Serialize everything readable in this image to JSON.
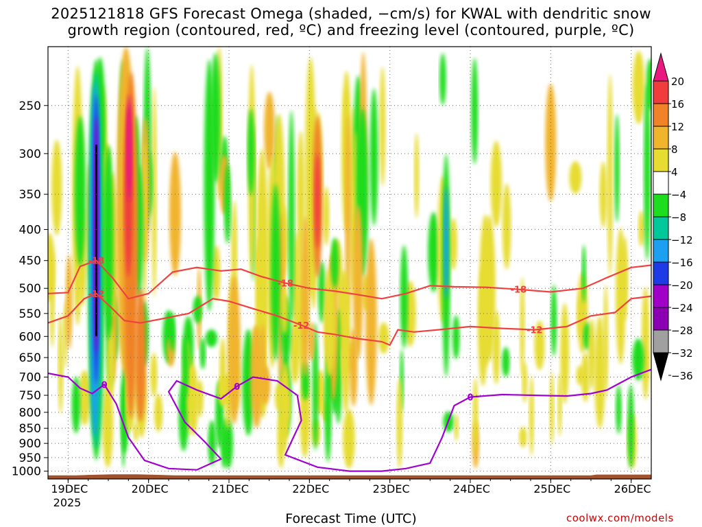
{
  "title_line1": "2025121818 GFS Forecast Omega (shaded, −cm/s) for KWAL with dendritic snow",
  "title_line2": "growth region (contoured, red, ºC) and freezing level (contoured, purple, ºC)",
  "xlabel": "Forecast Time (UTC)",
  "credit": "coolwx.com/models",
  "chart_data": {
    "type": "heatmap",
    "x_ticks": [
      "19DEC",
      "20DEC",
      "21DEC",
      "22DEC",
      "23DEC",
      "24DEC",
      "25DEC",
      "26DEC"
    ],
    "x_sublabel": "2025",
    "x_range_days": [
      18.75,
      26.25
    ],
    "y_ticks": [
      250,
      300,
      350,
      400,
      450,
      500,
      550,
      600,
      650,
      700,
      750,
      800,
      850,
      900,
      950,
      1000
    ],
    "y_range_hpa": [
      200,
      1030
    ],
    "colorbar": {
      "labels": [
        "20",
        "16",
        "12",
        "8",
        "4",
        "−4",
        "−8",
        "−12",
        "−16",
        "−20",
        "−24",
        "−28",
        "−32",
        "−36"
      ],
      "colors": [
        "#e8197f",
        "#f03c3c",
        "#f08228",
        "#f0b42d",
        "#e6dc32",
        "#ffffff",
        "#1edc1e",
        "#00c89b",
        "#1ea0f0",
        "#1e3ce6",
        "#a000c8",
        "#8c00b4",
        "#a0a0a0",
        "#000000"
      ]
    },
    "omega_features": [
      {
        "name": "ascent-core",
        "day": 19.35,
        "top": 210,
        "bottom": 970,
        "value": -24
      },
      {
        "name": "ascent-mid",
        "day": 23.7,
        "top": 300,
        "bottom": 700,
        "value": -12
      },
      {
        "name": "sinking-max",
        "day": 19.75,
        "top": 180,
        "bottom": 620,
        "value": 20
      },
      {
        "name": "sinking-2",
        "day": 22.1,
        "top": 280,
        "bottom": 460,
        "value": 16
      }
    ],
    "contours": [
      {
        "label": "-18",
        "color": "#f04040",
        "points": [
          [
            18.75,
            510
          ],
          [
            19.0,
            508
          ],
          [
            19.15,
            460
          ],
          [
            19.35,
            450
          ],
          [
            19.55,
            480
          ],
          [
            19.75,
            520
          ],
          [
            20.0,
            510
          ],
          [
            20.3,
            470
          ],
          [
            20.6,
            462
          ],
          [
            20.9,
            468
          ],
          [
            21.15,
            465
          ],
          [
            21.4,
            478
          ],
          [
            21.7,
            490
          ],
          [
            22.0,
            500
          ],
          [
            22.3,
            505
          ],
          [
            22.6,
            512
          ],
          [
            22.9,
            520
          ],
          [
            23.2,
            510
          ],
          [
            23.5,
            495
          ],
          [
            23.8,
            497
          ],
          [
            24.2,
            498
          ],
          [
            24.6,
            502
          ],
          [
            25.0,
            507
          ],
          [
            25.4,
            500
          ],
          [
            25.7,
            480
          ],
          [
            26.0,
            462
          ],
          [
            26.25,
            458
          ]
        ]
      },
      {
        "label": "-12",
        "color": "#f04040",
        "points": [
          [
            18.75,
            570
          ],
          [
            19.0,
            555
          ],
          [
            19.2,
            520
          ],
          [
            19.35,
            510
          ],
          [
            19.55,
            540
          ],
          [
            19.7,
            565
          ],
          [
            19.9,
            570
          ],
          [
            20.2,
            560
          ],
          [
            20.5,
            550
          ],
          [
            20.8,
            520
          ],
          [
            21.0,
            525
          ],
          [
            21.3,
            540
          ],
          [
            21.6,
            555
          ],
          [
            21.9,
            575
          ],
          [
            22.1,
            590
          ],
          [
            22.3,
            595
          ],
          [
            22.6,
            605
          ],
          [
            22.9,
            612
          ],
          [
            23.0,
            620
          ],
          [
            23.1,
            585
          ],
          [
            23.3,
            590
          ],
          [
            23.6,
            585
          ],
          [
            24.0,
            578
          ],
          [
            24.4,
            582
          ],
          [
            24.8,
            585
          ],
          [
            25.2,
            578
          ],
          [
            25.5,
            555
          ],
          [
            25.8,
            548
          ],
          [
            26.0,
            520
          ],
          [
            26.25,
            515
          ]
        ]
      },
      {
        "label": "0",
        "color": "#a000d0",
        "points": [
          [
            18.75,
            690
          ],
          [
            19.0,
            700
          ],
          [
            19.15,
            730
          ],
          [
            19.3,
            745
          ],
          [
            19.45,
            720
          ],
          [
            19.6,
            775
          ],
          [
            19.75,
            880
          ],
          [
            19.95,
            960
          ],
          [
            20.25,
            990
          ],
          [
            20.6,
            995
          ],
          [
            20.9,
            955
          ],
          [
            20.7,
            895
          ],
          [
            20.45,
            830
          ],
          [
            20.25,
            740
          ],
          [
            20.35,
            710
          ],
          [
            20.6,
            735
          ],
          [
            20.9,
            760
          ],
          [
            21.1,
            725
          ],
          [
            21.3,
            700
          ],
          [
            21.6,
            710
          ],
          [
            21.85,
            750
          ],
          [
            21.9,
            825
          ],
          [
            21.8,
            880
          ],
          [
            21.7,
            940
          ],
          [
            22.1,
            985
          ],
          [
            22.5,
            1000
          ],
          [
            22.9,
            1000
          ],
          [
            23.2,
            990
          ],
          [
            23.5,
            970
          ],
          [
            23.65,
            880
          ],
          [
            23.8,
            780
          ],
          [
            24.0,
            755
          ],
          [
            24.4,
            748
          ],
          [
            24.8,
            750
          ],
          [
            25.2,
            752
          ],
          [
            25.5,
            745
          ],
          [
            25.7,
            735
          ],
          [
            26.0,
            700
          ],
          [
            26.25,
            680
          ]
        ]
      }
    ]
  }
}
